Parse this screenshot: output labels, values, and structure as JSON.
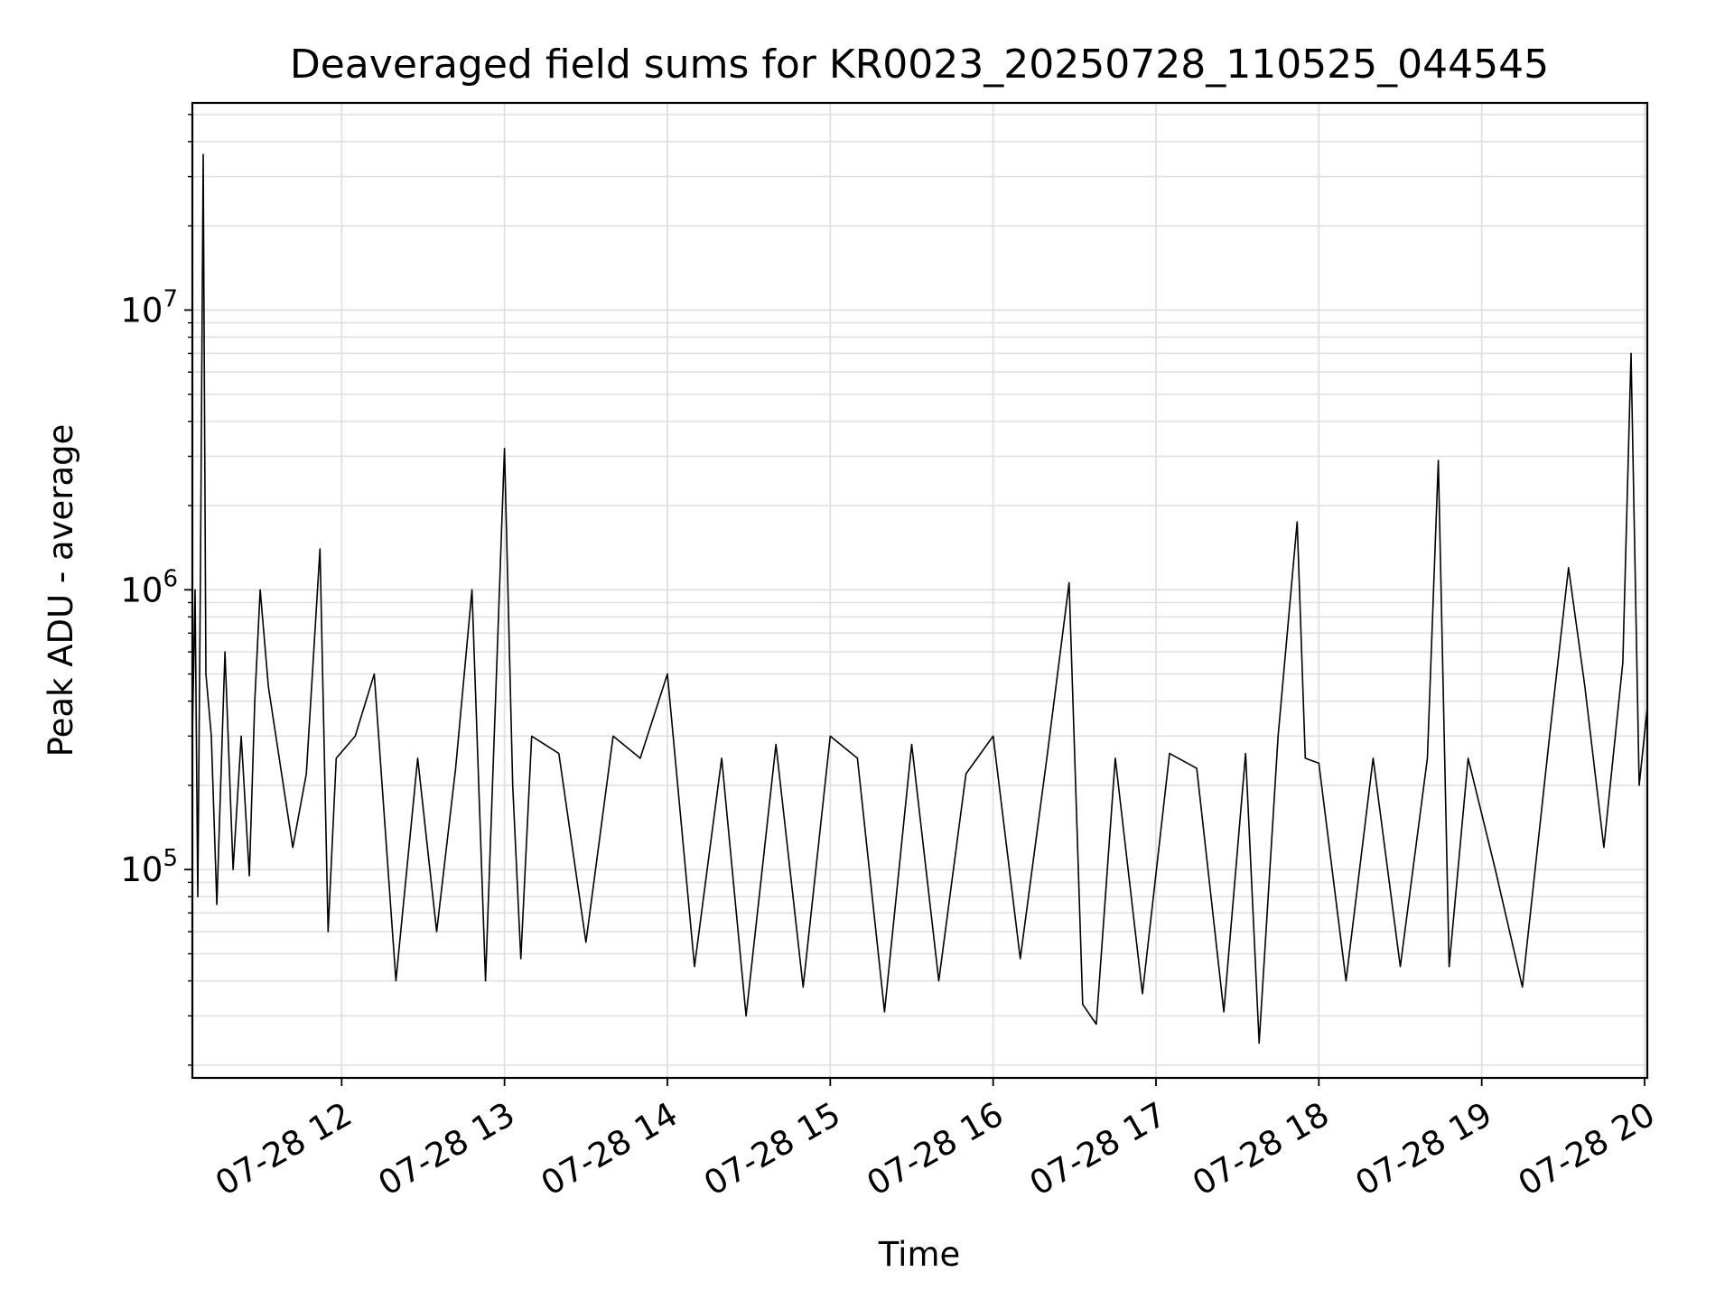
{
  "chart_data": {
    "type": "line",
    "title": "Deaveraged field sums for KR0023_20250728_110525_044545",
    "xlabel": "Time",
    "ylabel": "Peak ADU - average",
    "y_scale": "log",
    "ylim": [
      18000,
      55000000
    ],
    "xlim": [
      "2025-07-28 11:05",
      "2025-07-28 20:01"
    ],
    "x_ticks": [
      "2025-07-28 12:00",
      "2025-07-28 13:00",
      "2025-07-28 14:00",
      "2025-07-28 15:00",
      "2025-07-28 16:00",
      "2025-07-28 17:00",
      "2025-07-28 18:00",
      "2025-07-28 19:00",
      "2025-07-28 20:00"
    ],
    "x_tick_labels": [
      "07-28 12",
      "07-28 13",
      "07-28 14",
      "07-28 15",
      "07-28 16",
      "07-28 17",
      "07-28 18",
      "07-28 19",
      "07-28 20"
    ],
    "y_ticks": [
      {
        "value": 100000,
        "base": "10",
        "exp": "5"
      },
      {
        "value": 1000000,
        "base": "10",
        "exp": "6"
      },
      {
        "value": 10000000,
        "base": "10",
        "exp": "7"
      }
    ],
    "grid": true,
    "line_color": "#000000",
    "grid_color": "#e0e0e0",
    "series": [
      {
        "x": [
          "2025-07-28 11:05",
          "2025-07-28 11:06",
          "2025-07-28 11:07",
          "2025-07-28 11:08",
          "2025-07-28 11:09",
          "2025-07-28 11:10",
          "2025-07-28 11:12",
          "2025-07-28 11:14",
          "2025-07-28 11:17",
          "2025-07-28 11:20",
          "2025-07-28 11:23",
          "2025-07-28 11:26",
          "2025-07-28 11:28",
          "2025-07-28 11:30",
          "2025-07-28 11:33",
          "2025-07-28 11:37",
          "2025-07-28 11:42",
          "2025-07-28 11:47",
          "2025-07-28 11:52",
          "2025-07-28 11:55",
          "2025-07-28 11:58",
          "2025-07-28 12:05",
          "2025-07-28 12:12",
          "2025-07-28 12:20",
          "2025-07-28 12:28",
          "2025-07-28 12:35",
          "2025-07-28 12:42",
          "2025-07-28 12:48",
          "2025-07-28 12:53",
          "2025-07-28 13:00",
          "2025-07-28 13:03",
          "2025-07-28 13:06",
          "2025-07-28 13:10",
          "2025-07-28 13:20",
          "2025-07-28 13:30",
          "2025-07-28 13:40",
          "2025-07-28 13:50",
          "2025-07-28 14:00",
          "2025-07-28 14:10",
          "2025-07-28 14:20",
          "2025-07-28 14:29",
          "2025-07-28 14:40",
          "2025-07-28 14:50",
          "2025-07-28 15:00",
          "2025-07-28 15:10",
          "2025-07-28 15:20",
          "2025-07-28 15:30",
          "2025-07-28 15:40",
          "2025-07-28 15:50",
          "2025-07-28 16:00",
          "2025-07-28 16:10",
          "2025-07-28 16:20",
          "2025-07-28 16:28",
          "2025-07-28 16:33",
          "2025-07-28 16:38",
          "2025-07-28 16:45",
          "2025-07-28 16:55",
          "2025-07-28 17:05",
          "2025-07-28 17:15",
          "2025-07-28 17:25",
          "2025-07-28 17:33",
          "2025-07-28 17:38",
          "2025-07-28 17:45",
          "2025-07-28 17:52",
          "2025-07-28 17:55",
          "2025-07-28 18:00",
          "2025-07-28 18:10",
          "2025-07-28 18:20",
          "2025-07-28 18:30",
          "2025-07-28 18:40",
          "2025-07-28 18:44",
          "2025-07-28 18:48",
          "2025-07-28 18:55",
          "2025-07-28 19:05",
          "2025-07-28 19:15",
          "2025-07-28 19:25",
          "2025-07-28 19:32",
          "2025-07-28 19:38",
          "2025-07-28 19:45",
          "2025-07-28 19:52",
          "2025-07-28 19:55",
          "2025-07-28 19:58",
          "2025-07-28 20:01"
        ],
        "y": [
          300000,
          1000000,
          80000,
          1200000,
          36000000,
          500000,
          300000,
          75000,
          600000,
          100000,
          300000,
          95000,
          400000,
          1000000,
          450000,
          250000,
          120000,
          220000,
          1400000,
          60000,
          250000,
          300000,
          500000,
          40000,
          250000,
          60000,
          230000,
          1000000,
          40000,
          3200000,
          200000,
          48000,
          300000,
          260000,
          55000,
          300000,
          250000,
          500000,
          45000,
          250000,
          30000,
          280000,
          38000,
          300000,
          250000,
          31000,
          280000,
          40000,
          220000,
          300000,
          48000,
          260000,
          1060000,
          33000,
          28000,
          250000,
          36000,
          260000,
          230000,
          31000,
          260000,
          24000,
          300000,
          1750000,
          250000,
          240000,
          40000,
          250000,
          45000,
          250000,
          2900000,
          45000,
          250000,
          100000,
          38000,
          300000,
          1200000,
          450000,
          120000,
          550000,
          7000000,
          200000,
          380000
        ]
      }
    ]
  }
}
